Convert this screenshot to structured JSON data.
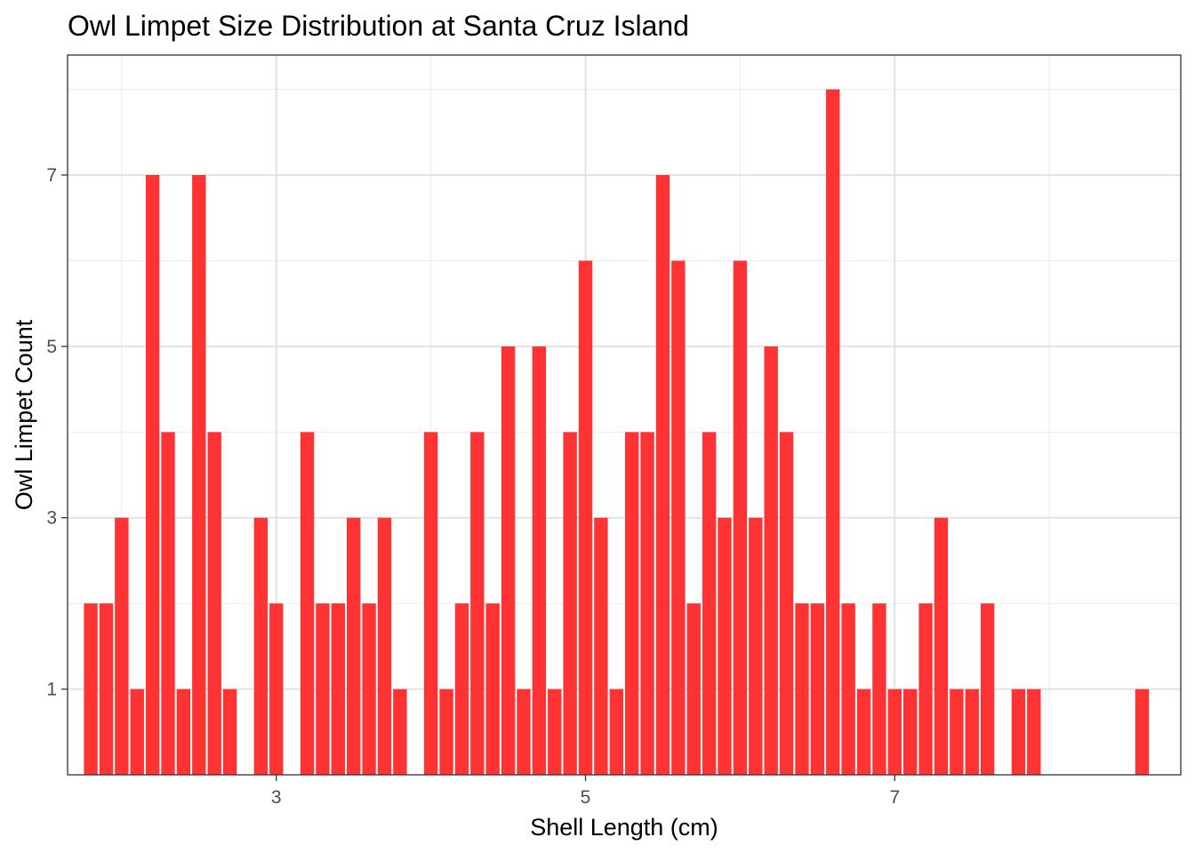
{
  "chart_data": {
    "type": "bar",
    "title": "Owl Limpet Size Distribution at Santa Cruz Island",
    "xlabel": "Shell Length (cm)",
    "ylabel": "Owl Limpet Count",
    "bar_color": "#ff3333",
    "grid": true,
    "bin_width": 0.1,
    "xlim": [
      1.65,
      8.85
    ],
    "ylim": [
      0,
      8.4
    ],
    "x_ticks": [
      3,
      5,
      7
    ],
    "y_ticks": [
      1,
      3,
      5,
      7
    ],
    "x": [
      1.8,
      1.9,
      2.0,
      2.1,
      2.2,
      2.3,
      2.4,
      2.5,
      2.6,
      2.7,
      2.9,
      3.0,
      3.2,
      3.3,
      3.4,
      3.5,
      3.6,
      3.7,
      3.8,
      4.0,
      4.1,
      4.2,
      4.3,
      4.4,
      4.5,
      4.6,
      4.7,
      4.8,
      4.9,
      5.0,
      5.1,
      5.2,
      5.3,
      5.4,
      5.5,
      5.6,
      5.7,
      5.8,
      5.9,
      6.0,
      6.1,
      6.2,
      6.3,
      6.4,
      6.5,
      6.6,
      6.7,
      6.8,
      6.9,
      7.0,
      7.1,
      7.2,
      7.3,
      7.4,
      7.5,
      7.6,
      7.8,
      7.9,
      8.6
    ],
    "values": [
      2,
      2,
      3,
      1,
      7,
      4,
      1,
      7,
      4,
      1,
      3,
      2,
      4,
      2,
      2,
      3,
      2,
      3,
      1,
      4,
      1,
      2,
      4,
      2,
      5,
      1,
      5,
      1,
      4,
      6,
      3,
      1,
      4,
      4,
      7,
      6,
      2,
      4,
      3,
      6,
      3,
      5,
      4,
      2,
      2,
      8,
      2,
      1,
      2,
      1,
      1,
      2,
      3,
      1,
      1,
      2,
      1,
      1,
      1
    ]
  }
}
